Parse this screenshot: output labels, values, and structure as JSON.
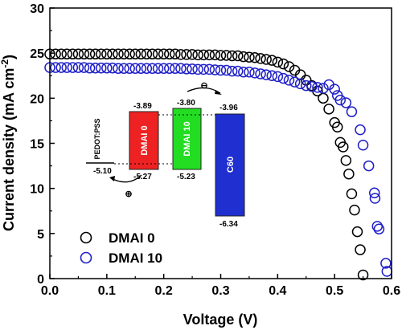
{
  "chart_data": {
    "type": "scatter",
    "xlabel": "Voltage (V)",
    "ylabel_main": "Current density (mA cm",
    "ylabel_sup": "-2",
    "ylabel_close": ")",
    "xlim": [
      0.0,
      0.6
    ],
    "ylim": [
      0,
      30
    ],
    "x_ticks": [
      0.0,
      0.1,
      0.2,
      0.3,
      0.4,
      0.5,
      0.6
    ],
    "x_tick_labels": [
      "0.0",
      "0.1",
      "0.2",
      "0.3",
      "0.4",
      "0.5",
      "0.6"
    ],
    "y_ticks": [
      0,
      5,
      10,
      15,
      20,
      25,
      30
    ],
    "y_tick_labels": [
      "0",
      "5",
      "10",
      "15",
      "20",
      "25",
      "30"
    ],
    "grid": false,
    "legend_position": "bottom-left",
    "series": [
      {
        "name": "DMAI 0",
        "color": "#000000",
        "marker": "open-circle",
        "points": [
          [
            0.0,
            24.9
          ],
          [
            0.01,
            24.9
          ],
          [
            0.02,
            24.9
          ],
          [
            0.03,
            24.9
          ],
          [
            0.04,
            24.9
          ],
          [
            0.05,
            24.9
          ],
          [
            0.06,
            24.9
          ],
          [
            0.07,
            24.9
          ],
          [
            0.08,
            24.9
          ],
          [
            0.09,
            24.9
          ],
          [
            0.1,
            24.9
          ],
          [
            0.11,
            24.9
          ],
          [
            0.12,
            24.9
          ],
          [
            0.13,
            24.9
          ],
          [
            0.14,
            24.9
          ],
          [
            0.15,
            24.9
          ],
          [
            0.16,
            24.9
          ],
          [
            0.17,
            24.9
          ],
          [
            0.18,
            24.9
          ],
          [
            0.19,
            24.9
          ],
          [
            0.2,
            24.9
          ],
          [
            0.21,
            24.9
          ],
          [
            0.22,
            24.9
          ],
          [
            0.23,
            24.85
          ],
          [
            0.24,
            24.85
          ],
          [
            0.25,
            24.85
          ],
          [
            0.26,
            24.8
          ],
          [
            0.27,
            24.8
          ],
          [
            0.28,
            24.8
          ],
          [
            0.29,
            24.8
          ],
          [
            0.3,
            24.75
          ],
          [
            0.31,
            24.75
          ],
          [
            0.32,
            24.7
          ],
          [
            0.33,
            24.7
          ],
          [
            0.34,
            24.6
          ],
          [
            0.35,
            24.55
          ],
          [
            0.36,
            24.5
          ],
          [
            0.37,
            24.4
          ],
          [
            0.38,
            24.3
          ],
          [
            0.39,
            24.2
          ],
          [
            0.4,
            24.0
          ],
          [
            0.41,
            23.8
          ],
          [
            0.42,
            23.5
          ],
          [
            0.43,
            23.1
          ],
          [
            0.44,
            22.6
          ],
          [
            0.45,
            22.0
          ],
          [
            0.46,
            21.4
          ],
          [
            0.47,
            20.8
          ],
          [
            0.48,
            20.0
          ],
          [
            0.49,
            18.8
          ],
          [
            0.5,
            17.3
          ],
          [
            0.505,
            16.8
          ],
          [
            0.51,
            15.1
          ],
          [
            0.515,
            14.6
          ],
          [
            0.52,
            13.1
          ],
          [
            0.525,
            11.6
          ],
          [
            0.53,
            9.4
          ],
          [
            0.535,
            7.6
          ],
          [
            0.54,
            5.2
          ],
          [
            0.545,
            3.2
          ],
          [
            0.55,
            0.4
          ]
        ]
      },
      {
        "name": "DMAI 10",
        "color": "#1f1fc8",
        "marker": "open-circle",
        "points": [
          [
            0.0,
            23.4
          ],
          [
            0.01,
            23.4
          ],
          [
            0.02,
            23.4
          ],
          [
            0.03,
            23.4
          ],
          [
            0.04,
            23.4
          ],
          [
            0.05,
            23.4
          ],
          [
            0.06,
            23.4
          ],
          [
            0.07,
            23.35
          ],
          [
            0.08,
            23.35
          ],
          [
            0.09,
            23.35
          ],
          [
            0.1,
            23.35
          ],
          [
            0.11,
            23.35
          ],
          [
            0.12,
            23.3
          ],
          [
            0.13,
            23.3
          ],
          [
            0.14,
            23.3
          ],
          [
            0.15,
            23.3
          ],
          [
            0.16,
            23.3
          ],
          [
            0.17,
            23.3
          ],
          [
            0.18,
            23.3
          ],
          [
            0.19,
            23.3
          ],
          [
            0.2,
            23.3
          ],
          [
            0.21,
            23.3
          ],
          [
            0.22,
            23.3
          ],
          [
            0.23,
            23.3
          ],
          [
            0.24,
            23.25
          ],
          [
            0.25,
            23.25
          ],
          [
            0.26,
            23.2
          ],
          [
            0.27,
            23.2
          ],
          [
            0.28,
            23.2
          ],
          [
            0.29,
            23.15
          ],
          [
            0.3,
            23.1
          ],
          [
            0.31,
            23.1
          ],
          [
            0.32,
            23.0
          ],
          [
            0.33,
            23.0
          ],
          [
            0.34,
            22.9
          ],
          [
            0.35,
            22.9
          ],
          [
            0.36,
            22.8
          ],
          [
            0.37,
            22.7
          ],
          [
            0.38,
            22.6
          ],
          [
            0.39,
            22.5
          ],
          [
            0.4,
            22.4
          ],
          [
            0.41,
            22.2
          ],
          [
            0.42,
            22.0
          ],
          [
            0.43,
            21.8
          ],
          [
            0.44,
            21.6
          ],
          [
            0.45,
            21.4
          ],
          [
            0.46,
            21.3
          ],
          [
            0.47,
            21.2
          ],
          [
            0.48,
            21.1
          ],
          [
            0.49,
            21.5
          ],
          [
            0.5,
            21.0
          ],
          [
            0.505,
            20.3
          ],
          [
            0.51,
            19.8
          ],
          [
            0.52,
            19.5
          ],
          [
            0.53,
            18.5
          ],
          [
            0.545,
            16.5
          ],
          [
            0.55,
            14.8
          ],
          [
            0.56,
            12.5
          ],
          [
            0.57,
            9.5
          ],
          [
            0.571,
            8.9
          ],
          [
            0.575,
            5.8
          ],
          [
            0.578,
            5.5
          ],
          [
            0.59,
            1.7
          ],
          [
            0.592,
            0.8
          ]
        ]
      }
    ],
    "inset": {
      "type": "energy-level-diagram",
      "yrange": [
        -2.6,
        -6.9
      ],
      "layers": [
        {
          "label": "PEDOT:PSS",
          "type": "level",
          "level": -5.1,
          "level_label": "-5.10"
        },
        {
          "label": "DMAI 0",
          "type": "band",
          "top": -3.89,
          "bottom": -5.27,
          "top_label": "-3.89",
          "bottom_label": "-5.27",
          "color": "#ee2222"
        },
        {
          "label": "DMAI 10",
          "type": "band",
          "top": -3.8,
          "bottom": -5.23,
          "top_label": "-3.80",
          "bottom_label": "-5.23",
          "color": "#22dd22"
        },
        {
          "label": "C60",
          "type": "band",
          "top": -3.96,
          "bottom": -6.34,
          "top_label": "-3.96",
          "bottom_label": "-6.34",
          "color": "#1f2fd0"
        }
      ],
      "electron_symbol": "⊖",
      "hole_symbol": "⊕"
    }
  }
}
